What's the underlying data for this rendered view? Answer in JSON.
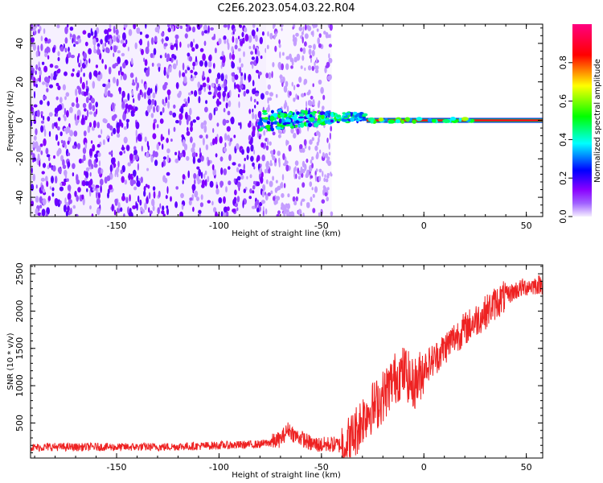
{
  "title": "C2E6.2023.054.03.22.R04",
  "chart_data": [
    {
      "type": "heatmap",
      "xlabel": "Height of straight line (km)",
      "ylabel": "Frequency (Hz)",
      "xlim": [
        -192,
        58
      ],
      "ylim": [
        -50,
        50
      ],
      "xticks": [
        -150,
        -100,
        -50,
        0,
        50
      ],
      "yticks": [
        -40,
        -20,
        0,
        20,
        40
      ],
      "colorbar": {
        "label": "Normalized spectral amplitude",
        "range": [
          0,
          1
        ],
        "ticks": [
          0.0,
          0.2,
          0.4,
          0.6,
          0.8
        ],
        "colors": [
          "#f2ecff",
          "#8a00ff",
          "#0000ff",
          "#00ffff",
          "#00ff00",
          "#ffff00",
          "#ff0000",
          "#ff0080"
        ]
      },
      "regions": [
        {
          "x_range": [
            -192,
            -77
          ],
          "pattern": "dense noise",
          "frequency_range": [
            -50,
            50
          ],
          "amplitude": 0.1
        },
        {
          "x_range": [
            -77,
            -45
          ],
          "pattern": "sparse noise",
          "frequency_range": [
            -50,
            50
          ],
          "amplitude": 0.05
        },
        {
          "x_range": [
            -80,
            -28
          ],
          "pattern": "signal blob",
          "frequency_center": 0,
          "amplitude": 0.5
        },
        {
          "x_range": [
            -28,
            58
          ],
          "pattern": "narrow line",
          "frequency_center": 0,
          "amplitude": 0.95
        }
      ]
    },
    {
      "type": "line",
      "xlabel": "Height of straight line (km)",
      "ylabel": "SNR (10 * v/v)",
      "xlim": [
        -192,
        58
      ],
      "ylim": [
        30,
        2620
      ],
      "xticks": [
        -150,
        -100,
        -50,
        0,
        50
      ],
      "yticks": [
        500,
        1000,
        1500,
        2000,
        2500
      ],
      "series": [
        {
          "color": "#ee2222",
          "x": [
            -192,
            -180,
            -170,
            -160,
            -150,
            -140,
            -130,
            -120,
            -110,
            -100,
            -90,
            -80,
            -75,
            -70,
            -66,
            -63,
            -60,
            -55,
            -50,
            -45,
            -40,
            -36,
            -33,
            -30,
            -27,
            -24,
            -21,
            -18,
            -15,
            -12,
            -9,
            -6,
            -3,
            0,
            5,
            10,
            15,
            20,
            25,
            30,
            35,
            40,
            45,
            50,
            55,
            58
          ],
          "y": [
            170,
            180,
            175,
            180,
            175,
            180,
            178,
            185,
            190,
            200,
            205,
            215,
            240,
            280,
            420,
            330,
            300,
            220,
            205,
            215,
            200,
            260,
            400,
            560,
            680,
            720,
            820,
            940,
            1080,
            1150,
            1200,
            1010,
            1060,
            1250,
            1350,
            1500,
            1650,
            1760,
            1870,
            1980,
            2110,
            2200,
            2280,
            2330,
            2350,
            2360
          ]
        }
      ]
    }
  ]
}
